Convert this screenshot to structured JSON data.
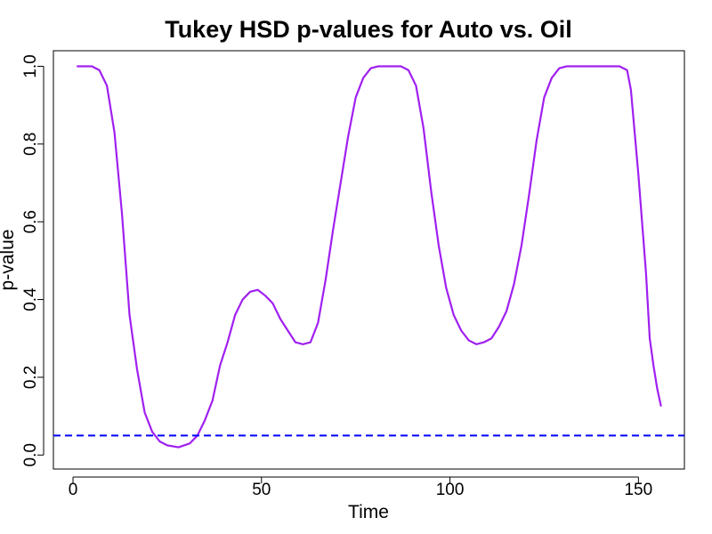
{
  "chart_data": {
    "type": "line",
    "title": "Tukey HSD p-values for Auto vs. Oil",
    "x_label": "Time",
    "y_label": "p-value",
    "x": [
      1,
      5,
      7,
      9,
      11,
      13,
      15,
      17,
      19,
      21,
      23,
      25,
      28,
      31,
      33,
      35,
      37,
      39,
      41,
      43,
      45,
      47,
      49,
      51,
      53,
      55,
      57,
      59,
      61,
      63,
      65,
      67,
      69,
      71,
      73,
      75,
      77,
      79,
      81,
      85,
      87,
      89,
      91,
      93,
      95,
      97,
      99,
      101,
      103,
      105,
      107,
      109,
      111,
      113,
      115,
      117,
      119,
      121,
      123,
      125,
      127,
      129,
      131,
      135,
      140,
      145,
      147,
      148,
      150,
      152,
      153,
      154,
      155,
      156
    ],
    "values": [
      1.0,
      1.0,
      0.99,
      0.95,
      0.83,
      0.62,
      0.36,
      0.22,
      0.11,
      0.06,
      0.035,
      0.025,
      0.02,
      0.03,
      0.05,
      0.09,
      0.14,
      0.23,
      0.29,
      0.36,
      0.4,
      0.42,
      0.425,
      0.41,
      0.39,
      0.35,
      0.32,
      0.29,
      0.285,
      0.29,
      0.34,
      0.45,
      0.58,
      0.7,
      0.82,
      0.92,
      0.97,
      0.995,
      1.0,
      1.0,
      1.0,
      0.99,
      0.95,
      0.84,
      0.68,
      0.54,
      0.43,
      0.36,
      0.32,
      0.295,
      0.285,
      0.29,
      0.3,
      0.33,
      0.37,
      0.44,
      0.54,
      0.67,
      0.81,
      0.92,
      0.97,
      0.995,
      1.0,
      1.0,
      1.0,
      1.0,
      0.99,
      0.94,
      0.72,
      0.47,
      0.3,
      0.23,
      0.17,
      0.125
    ],
    "color": "#a020f0",
    "reference_line": 0.05,
    "reference_color": "#0000ff",
    "xlim": [
      -5.2,
      162.2
    ],
    "ylim": [
      -0.036,
      1.04
    ],
    "xticks": [
      0,
      50,
      100,
      150
    ],
    "yticks": [
      {
        "value": 0,
        "label": "0.0"
      },
      0.2,
      0.4,
      0.6,
      0.8,
      {
        "value": 1,
        "label": "1.0"
      }
    ]
  }
}
